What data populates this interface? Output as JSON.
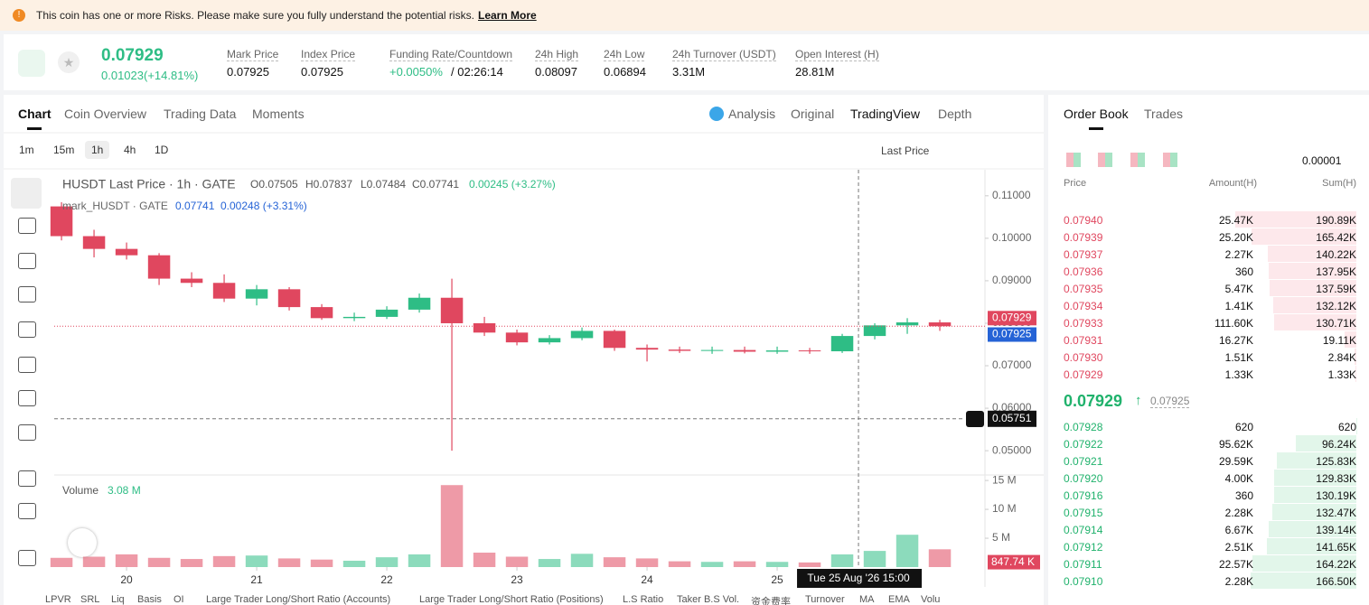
{
  "banner": {
    "text": "This coin has one or more Risks. Please make sure you fully understand the potential risks.",
    "link": "Learn More"
  },
  "ticker": {
    "price": "0.07929",
    "change": "0.01023(+14.81%)",
    "stats": [
      {
        "label": "Mark Price",
        "value": "0.07925"
      },
      {
        "label": "Index Price",
        "value": "0.07925"
      },
      {
        "label": "Funding Rate/Countdown",
        "value": "+0.0050%",
        "extra": "/ 02:26:14"
      },
      {
        "label": "24h High",
        "value": "0.08097"
      },
      {
        "label": "24h Low",
        "value": "0.06894"
      },
      {
        "label": "24h Turnover (USDT)",
        "value": "3.31M"
      },
      {
        "label": "Open Interest (H)",
        "value": "28.81M"
      }
    ]
  },
  "tabs": [
    "Chart",
    "Coin Overview",
    "Trading Data",
    "Moments"
  ],
  "views": [
    "Analysis",
    "Original",
    "TradingView",
    "Depth"
  ],
  "intervals": [
    "1m",
    "15m",
    "1h",
    "4h",
    "1D"
  ],
  "price_source": "Last Price",
  "indicators": [
    "LPVR",
    "SRL",
    "Liq",
    "Basis",
    "OI",
    "Large Trader Long/Short Ratio (Accounts)",
    "Large Trader Long/Short Ratio (Positions)",
    "L.S Ratio",
    "Taker B.S Vol.",
    "资金费率",
    "Turnover",
    "MA",
    "EMA",
    "Volu"
  ],
  "chart_data": {
    "type": "candlestick",
    "title": "HUSDT Last Price · 1h · GATE",
    "ohlc": [
      "O0.07505",
      "H0.07837",
      "L0.07484",
      "C0.07741",
      "0.00245 (+3.27%)"
    ],
    "mark_series": {
      "name": "mark_HUSDT · GATE",
      "values": [
        "0.07741",
        "0.00248 (+3.31%)"
      ]
    },
    "x": [
      19.5,
      19.75,
      20,
      20.25,
      20.5,
      20.75,
      21,
      21.25,
      21.5,
      21.75,
      22,
      22.25,
      22.5,
      22.75,
      23,
      23.25,
      23.5,
      23.75,
      24,
      24.25,
      24.5,
      24.75,
      25,
      25.25,
      25.5,
      25.75,
      26,
      26.25
    ],
    "open": [
      0.1075,
      0.1005,
      0.0975,
      0.096,
      0.0905,
      0.0895,
      0.0858,
      0.088,
      0.0838,
      0.0812,
      0.0815,
      0.0832,
      0.086,
      0.08,
      0.0778,
      0.0755,
      0.0765,
      0.0782,
      0.0742,
      0.0738,
      0.0735,
      0.0737,
      0.0733,
      0.0736,
      0.0734,
      0.077,
      0.0795,
      0.0802
    ],
    "high": [
      0.1085,
      0.102,
      0.099,
      0.0965,
      0.092,
      0.0915,
      0.089,
      0.0885,
      0.0845,
      0.0825,
      0.084,
      0.087,
      0.0905,
      0.0815,
      0.0785,
      0.0772,
      0.079,
      0.0785,
      0.075,
      0.0745,
      0.0745,
      0.0745,
      0.0745,
      0.0742,
      0.0775,
      0.08,
      0.0812,
      0.0808
    ],
    "low": [
      0.0995,
      0.0955,
      0.095,
      0.089,
      0.0885,
      0.085,
      0.0842,
      0.083,
      0.0808,
      0.0805,
      0.081,
      0.0825,
      0.05,
      0.077,
      0.0748,
      0.075,
      0.076,
      0.0735,
      0.071,
      0.073,
      0.0728,
      0.0729,
      0.0728,
      0.0728,
      0.073,
      0.0762,
      0.0775,
      0.0782
    ],
    "close": [
      0.1005,
      0.0975,
      0.096,
      0.0905,
      0.0895,
      0.0858,
      0.088,
      0.0838,
      0.0812,
      0.0815,
      0.0832,
      0.086,
      0.08,
      0.0778,
      0.0755,
      0.0765,
      0.0782,
      0.0742,
      0.0738,
      0.0735,
      0.0737,
      0.0733,
      0.0736,
      0.0734,
      0.077,
      0.0795,
      0.0802,
      0.07929
    ],
    "xlim": [
      19.444,
      26.597
    ],
    "xticks": [
      20,
      21,
      22,
      23,
      24,
      25
    ],
    "ylim": [
      0.0445,
      0.1157
    ],
    "yticks": [
      {
        "value": 0.05,
        "label": "0.05000"
      },
      {
        "value": 0.06,
        "label": "0.06000"
      },
      {
        "value": 0.07,
        "label": "0.07000"
      },
      {
        "value": 0.08,
        "label": "0.08000"
      },
      {
        "value": 0.09,
        "label": "0.09000"
      },
      {
        "value": 0.1,
        "label": "0.10000"
      },
      {
        "value": 0.11,
        "label": "0.11000"
      }
    ],
    "up_color": "#2ebd85",
    "down_color": "#e0475f",
    "price_lines": [
      {
        "value": 0.07929,
        "label": "0.07929",
        "color": "#e0475f"
      },
      {
        "value": 0.07925,
        "label": "0.07925",
        "color": "#2563d6"
      }
    ],
    "crosshair": {
      "x": 25.625,
      "x_label": "Tue 25 Aug '26   15:00",
      "y": 0.05751,
      "y_label": "0.05751"
    },
    "volume": {
      "title": "Volume",
      "last": "3.08 M",
      "values": [
        1.6,
        1.8,
        2.2,
        1.6,
        1.4,
        1.9,
        2.0,
        1.5,
        1.3,
        1.1,
        1.7,
        2.2,
        14.2,
        2.5,
        1.8,
        1.4,
        2.3,
        1.7,
        1.5,
        1.0,
        0.9,
        1.0,
        0.9,
        0.8,
        2.2,
        2.8,
        5.6,
        3.08
      ],
      "ylim": [
        0,
        15.8
      ],
      "yticks": [
        {
          "value": 5,
          "label": "5 M"
        },
        {
          "value": 10,
          "label": "10 M"
        },
        {
          "value": 15,
          "label": "15 M"
        }
      ],
      "price_label": {
        "value": 0.84774,
        "label": "847.74 K"
      }
    }
  },
  "order_book": {
    "tabs": [
      "Order Book",
      "Trades"
    ],
    "precision": "0.00001",
    "columns": [
      "Price",
      "Amount(H)",
      "Sum(H)"
    ],
    "asks": [
      {
        "price": "0.07940",
        "amount": "25.47K",
        "sum": {
          "value": 190890,
          "label": "190.89K"
        }
      },
      {
        "price": "0.07939",
        "amount": "25.20K",
        "sum": {
          "value": 165420,
          "label": "165.42K"
        }
      },
      {
        "price": "0.07937",
        "amount": "2.27K",
        "sum": {
          "value": 140220,
          "label": "140.22K"
        }
      },
      {
        "price": "0.07936",
        "amount": "360",
        "sum": {
          "value": 137950,
          "label": "137.95K"
        }
      },
      {
        "price": "0.07935",
        "amount": "5.47K",
        "sum": {
          "value": 137590,
          "label": "137.59K"
        }
      },
      {
        "price": "0.07934",
        "amount": "1.41K",
        "sum": {
          "value": 132120,
          "label": "132.12K"
        }
      },
      {
        "price": "0.07933",
        "amount": "111.60K",
        "sum": {
          "value": 130710,
          "label": "130.71K"
        }
      },
      {
        "price": "0.07931",
        "amount": "16.27K",
        "sum": {
          "value": 19110,
          "label": "19.11K"
        }
      },
      {
        "price": "0.07930",
        "amount": "1.51K",
        "sum": {
          "value": 2840,
          "label": "2.84K"
        }
      },
      {
        "price": "0.07929",
        "amount": "1.33K",
        "sum": {
          "value": 1330,
          "label": "1.33K"
        }
      }
    ],
    "mid": {
      "price": "0.07929",
      "mark": "0.07925"
    },
    "bids": [
      {
        "price": "0.07928",
        "amount": "620",
        "sum": 620
      },
      {
        "price": "0.07922",
        "amount": "95.62K",
        "sum": {
          "value": 96240,
          "label": "96.24K"
        }
      },
      {
        "price": "0.07921",
        "amount": "29.59K",
        "sum": {
          "value": 125830,
          "label": "125.83K"
        }
      },
      {
        "price": "0.07920",
        "amount": "4.00K",
        "sum": {
          "value": 129830,
          "label": "129.83K"
        }
      },
      {
        "price": "0.07916",
        "amount": "360",
        "sum": {
          "value": 130190,
          "label": "130.19K"
        }
      },
      {
        "price": "0.07915",
        "amount": "2.28K",
        "sum": {
          "value": 132470,
          "label": "132.47K"
        }
      },
      {
        "price": "0.07914",
        "amount": "6.67K",
        "sum": {
          "value": 139140,
          "label": "139.14K"
        }
      },
      {
        "price": "0.07912",
        "amount": "2.51K",
        "sum": {
          "value": 141650,
          "label": "141.65K"
        }
      },
      {
        "price": "0.07911",
        "amount": "22.57K",
        "sum": {
          "value": 164220,
          "label": "164.22K"
        }
      },
      {
        "price": "0.07910",
        "amount": "2.28K",
        "sum": {
          "value": 166500,
          "label": "166.50K"
        }
      }
    ]
  }
}
